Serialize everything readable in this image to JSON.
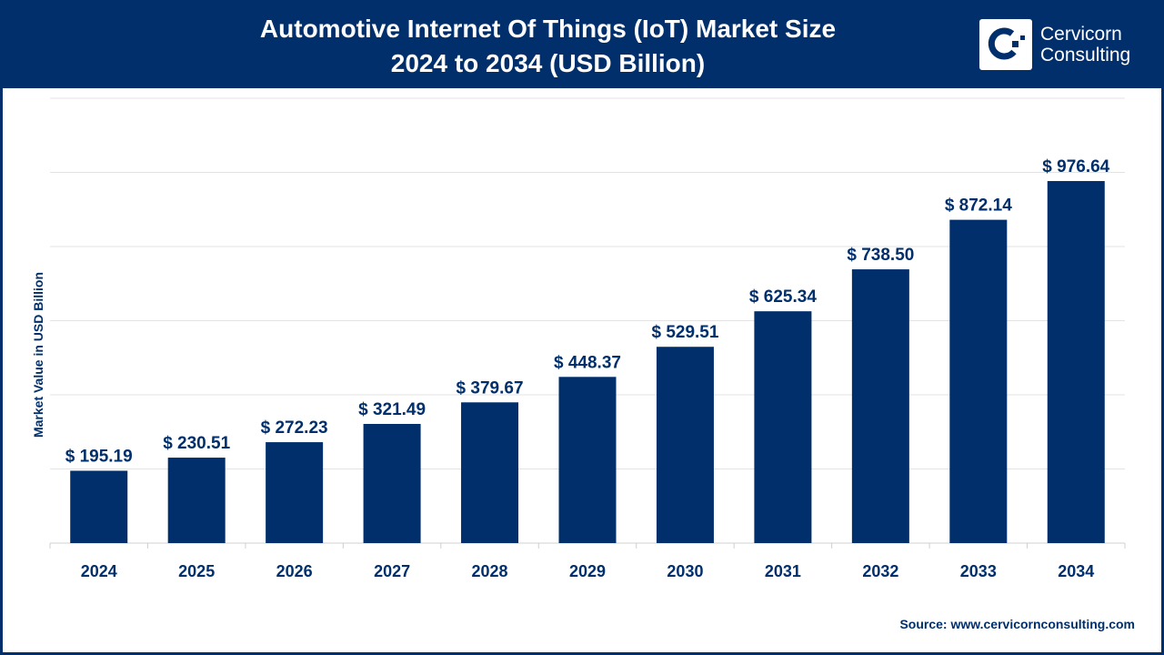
{
  "header": {
    "title_line1": "Automotive Internet Of Things (IoT) Market Size",
    "title_line2": "2024 to 2034 (USD Billion)",
    "logo_line1": "Cervicorn",
    "logo_line2": "Consulting"
  },
  "source": "Source: www.cervicornconsulting.com",
  "colors": {
    "brand": "#002f6c",
    "bar": "#002f6c",
    "grid": "#e3e3e3"
  },
  "chart_data": {
    "type": "bar",
    "title": "Automotive Internet Of Things (IoT) Market Size 2024 to 2034 (USD Billion)",
    "xlabel": "",
    "ylabel": "Market Value in USD Billion",
    "categories": [
      "2024",
      "2025",
      "2026",
      "2027",
      "2028",
      "2029",
      "2030",
      "2031",
      "2032",
      "2033",
      "2034"
    ],
    "values": [
      195.19,
      230.51,
      272.23,
      321.49,
      379.67,
      448.37,
      529.51,
      625.34,
      738.5,
      872.14,
      976.64
    ],
    "data_labels": [
      "$ 195.19",
      "$ 230.51",
      "$ 272.23",
      "$ 321.49",
      "$ 379.67",
      "$ 448.37",
      "$ 529.51",
      "$ 625.34",
      "$ 738.50",
      "$ 872.14",
      "$ 976.64"
    ],
    "ylim": [
      0,
      1200
    ],
    "grid": true,
    "y_tick_labels_shown": false,
    "legend": "none"
  }
}
